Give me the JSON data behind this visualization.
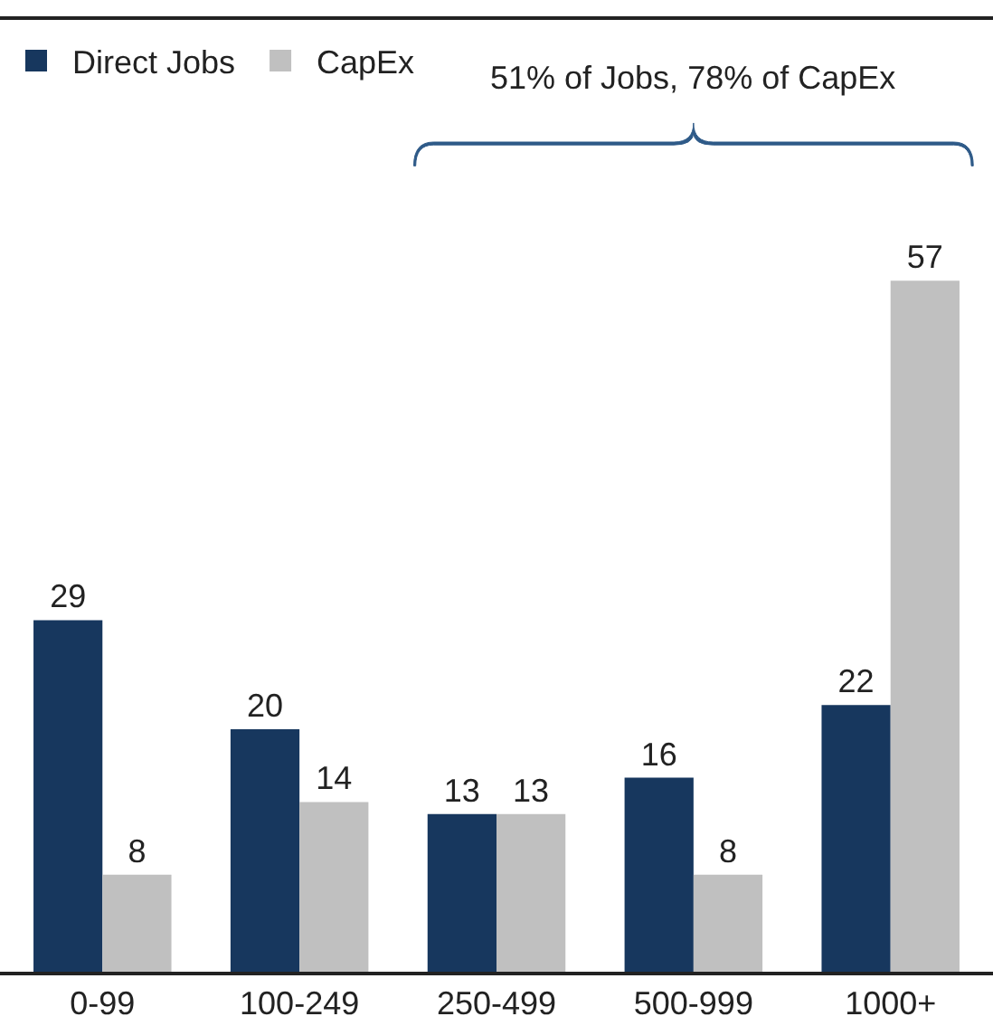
{
  "chart_data": {
    "type": "bar",
    "categories": [
      "0-99",
      "100-249",
      "250-499",
      "500-999",
      "1000+"
    ],
    "series": [
      {
        "name": "Direct Jobs",
        "color": "#17375e",
        "values": [
          29,
          20,
          13,
          16,
          22
        ]
      },
      {
        "name": "CapEx",
        "color": "#c0c0c0",
        "values": [
          8,
          14,
          13,
          8,
          57
        ]
      }
    ],
    "annotations": [
      "51% of Jobs, 78% of CapEx"
    ],
    "data_labels": true,
    "legend": "top left"
  }
}
